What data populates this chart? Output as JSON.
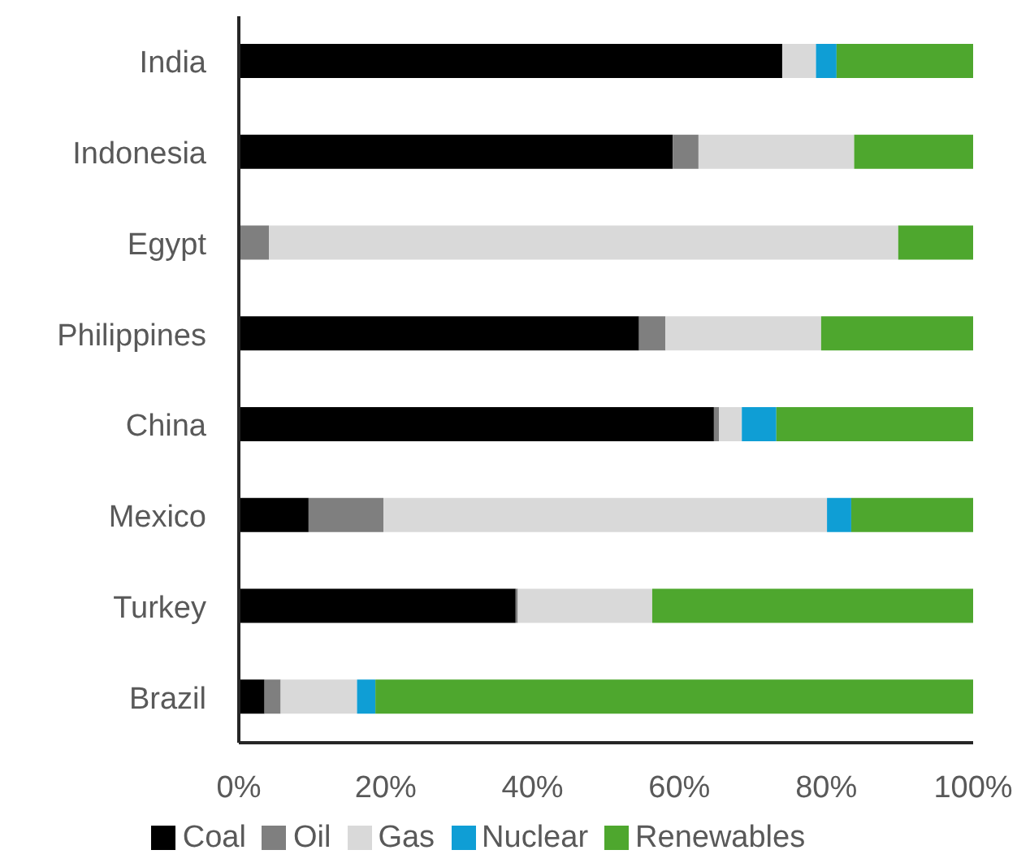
{
  "chart_data": {
    "type": "bar",
    "orientation": "horizontal",
    "stacked": true,
    "categories": [
      "India",
      "Indonesia",
      "Egypt",
      "Philippines",
      "China",
      "Mexico",
      "Turkey",
      "Brazil"
    ],
    "series": [
      {
        "name": "Coal",
        "color": "#000000",
        "values": [
          74.0,
          59.1,
          0,
          54.5,
          64.7,
          9.5,
          37.7,
          3.5
        ]
      },
      {
        "name": "Oil",
        "color": "#7f7f7f",
        "values": [
          0,
          3.5,
          4.1,
          3.6,
          0.7,
          10.2,
          0.3,
          2.2
        ]
      },
      {
        "name": "Gas",
        "color": "#d9d9d9",
        "values": [
          4.6,
          21.2,
          85.7,
          21.2,
          3.1,
          60.4,
          18.3,
          10.4
        ]
      },
      {
        "name": "Nuclear",
        "color": "#0f9ed5",
        "values": [
          2.8,
          0,
          0,
          0,
          4.7,
          3.3,
          0,
          2.5
        ]
      },
      {
        "name": "Renewables",
        "color": "#4ea72e",
        "values": [
          18.6,
          16.2,
          10.2,
          20.7,
          26.8,
          16.6,
          43.7,
          81.4
        ]
      }
    ],
    "xlim": [
      0,
      100
    ],
    "xticks": [
      {
        "value": 0,
        "label": "0%"
      },
      {
        "value": 20,
        "label": "20%"
      },
      {
        "value": 40,
        "label": "40%"
      },
      {
        "value": 60,
        "label": "60%"
      },
      {
        "value": 80,
        "label": "80%"
      },
      {
        "value": 100,
        "label": "100%"
      }
    ],
    "grid": false,
    "legend": "bottom"
  }
}
